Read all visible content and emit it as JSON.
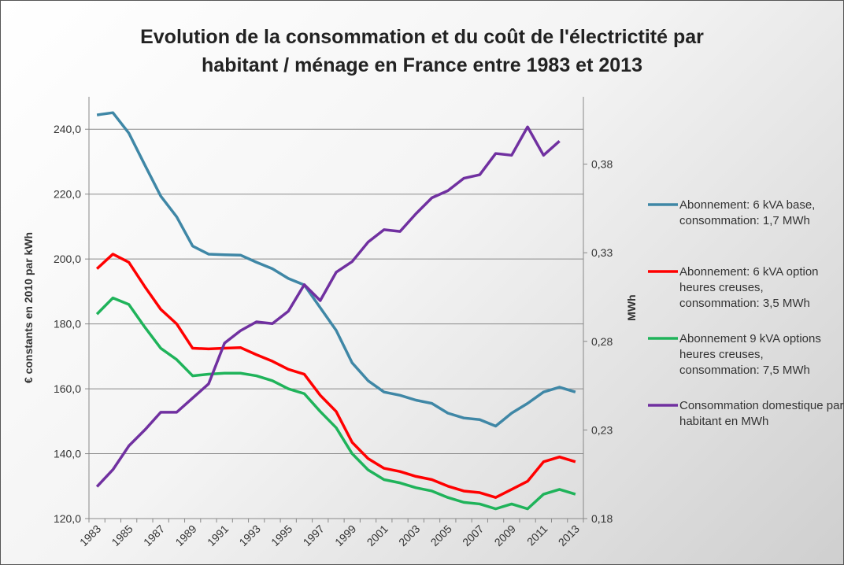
{
  "chart_data": {
    "type": "line",
    "title": "Evolution de la consommation et du coût de l'électrictité par habitant / ménage en France entre 1983 et 2013",
    "y_label": "€ constants en 2010 par kWh",
    "y2_label": "MWh",
    "categories": [
      "1983",
      null,
      "1985",
      null,
      "1987",
      null,
      "1989",
      null,
      "1991",
      null,
      "1993",
      null,
      "1995",
      null,
      "1997",
      null,
      "1999",
      null,
      "2001",
      null,
      "2003",
      null,
      "2005",
      null,
      "2007",
      null,
      "2009",
      null,
      "2011",
      null,
      "2013"
    ],
    "ylim": [
      120,
      250
    ],
    "yticks": [
      {
        "value": 120,
        "label": "120,0"
      },
      {
        "value": 140,
        "label": "140,0"
      },
      {
        "value": 160,
        "label": "160,0"
      },
      {
        "value": 180,
        "label": "180,0"
      },
      {
        "value": 200,
        "label": "200,0"
      },
      {
        "value": 220,
        "label": "220,0"
      },
      {
        "value": 240,
        "label": "240,0"
      }
    ],
    "y2lim": [
      0.18,
      0.418
    ],
    "y2ticks": [
      {
        "value": 0.18,
        "label": "0,18"
      },
      {
        "value": 0.23,
        "label": "0,23"
      },
      {
        "value": 0.28,
        "label": "0,28"
      },
      {
        "value": 0.33,
        "label": "0,33"
      },
      {
        "value": 0.38,
        "label": "0,38"
      }
    ],
    "grid": true,
    "legend": "right",
    "series": [
      {
        "name": "Abonnement: 6 kVA base, consommation: 1,7 MWh",
        "color": "#3f87a6",
        "values": [
          244.4,
          245.1,
          238.8,
          229,
          219.4,
          213,
          204,
          201.5,
          201.3,
          201.2,
          199,
          197,
          194,
          192,
          185,
          178,
          168,
          162.5,
          159,
          158,
          156.5,
          155.5,
          152.5,
          151,
          150.5,
          148.5,
          152.5,
          155.5,
          159,
          160.5,
          159
        ]
      },
      {
        "name": "Abonnement: 6 kVA option heures creuses, consommation: 3,5 MWh",
        "color": "#ff0000",
        "values": [
          197,
          201.5,
          199,
          191.5,
          184.5,
          180,
          172.5,
          172.3,
          172.5,
          172.7,
          170.5,
          168.5,
          166,
          164.5,
          158,
          153,
          143.5,
          138.5,
          135.5,
          134.5,
          133,
          132,
          130,
          128.5,
          128,
          126.5,
          129,
          131.5,
          137.5,
          139,
          137.5
        ]
      },
      {
        "name": "Abonnement 9 kVA options heures creuses, consommation: 7,5 MWh",
        "color": "#1fb35a",
        "values": [
          183,
          188,
          186,
          179,
          172.5,
          169,
          164,
          164.5,
          164.8,
          164.8,
          164,
          162.5,
          160,
          158.5,
          153,
          148,
          140,
          135,
          132,
          131,
          129.5,
          128.5,
          126.5,
          125,
          124.5,
          123,
          124.5,
          123,
          127.5,
          129,
          127.5
        ]
      },
      {
        "name": "Consommation domestique par habitant en MWh",
        "color": "#7030a0",
        "axis": "y2",
        "values": [
          0.198,
          0.2076,
          0.221,
          0.23,
          0.24,
          0.24,
          0.248,
          0.256,
          0.279,
          0.286,
          0.291,
          0.29,
          0.297,
          0.312,
          0.303,
          0.319,
          0.325,
          0.336,
          0.343,
          0.342,
          0.352,
          0.361,
          0.365,
          0.372,
          0.374,
          0.386,
          0.385,
          0.401,
          0.385,
          0.393,
          null
        ]
      }
    ]
  }
}
